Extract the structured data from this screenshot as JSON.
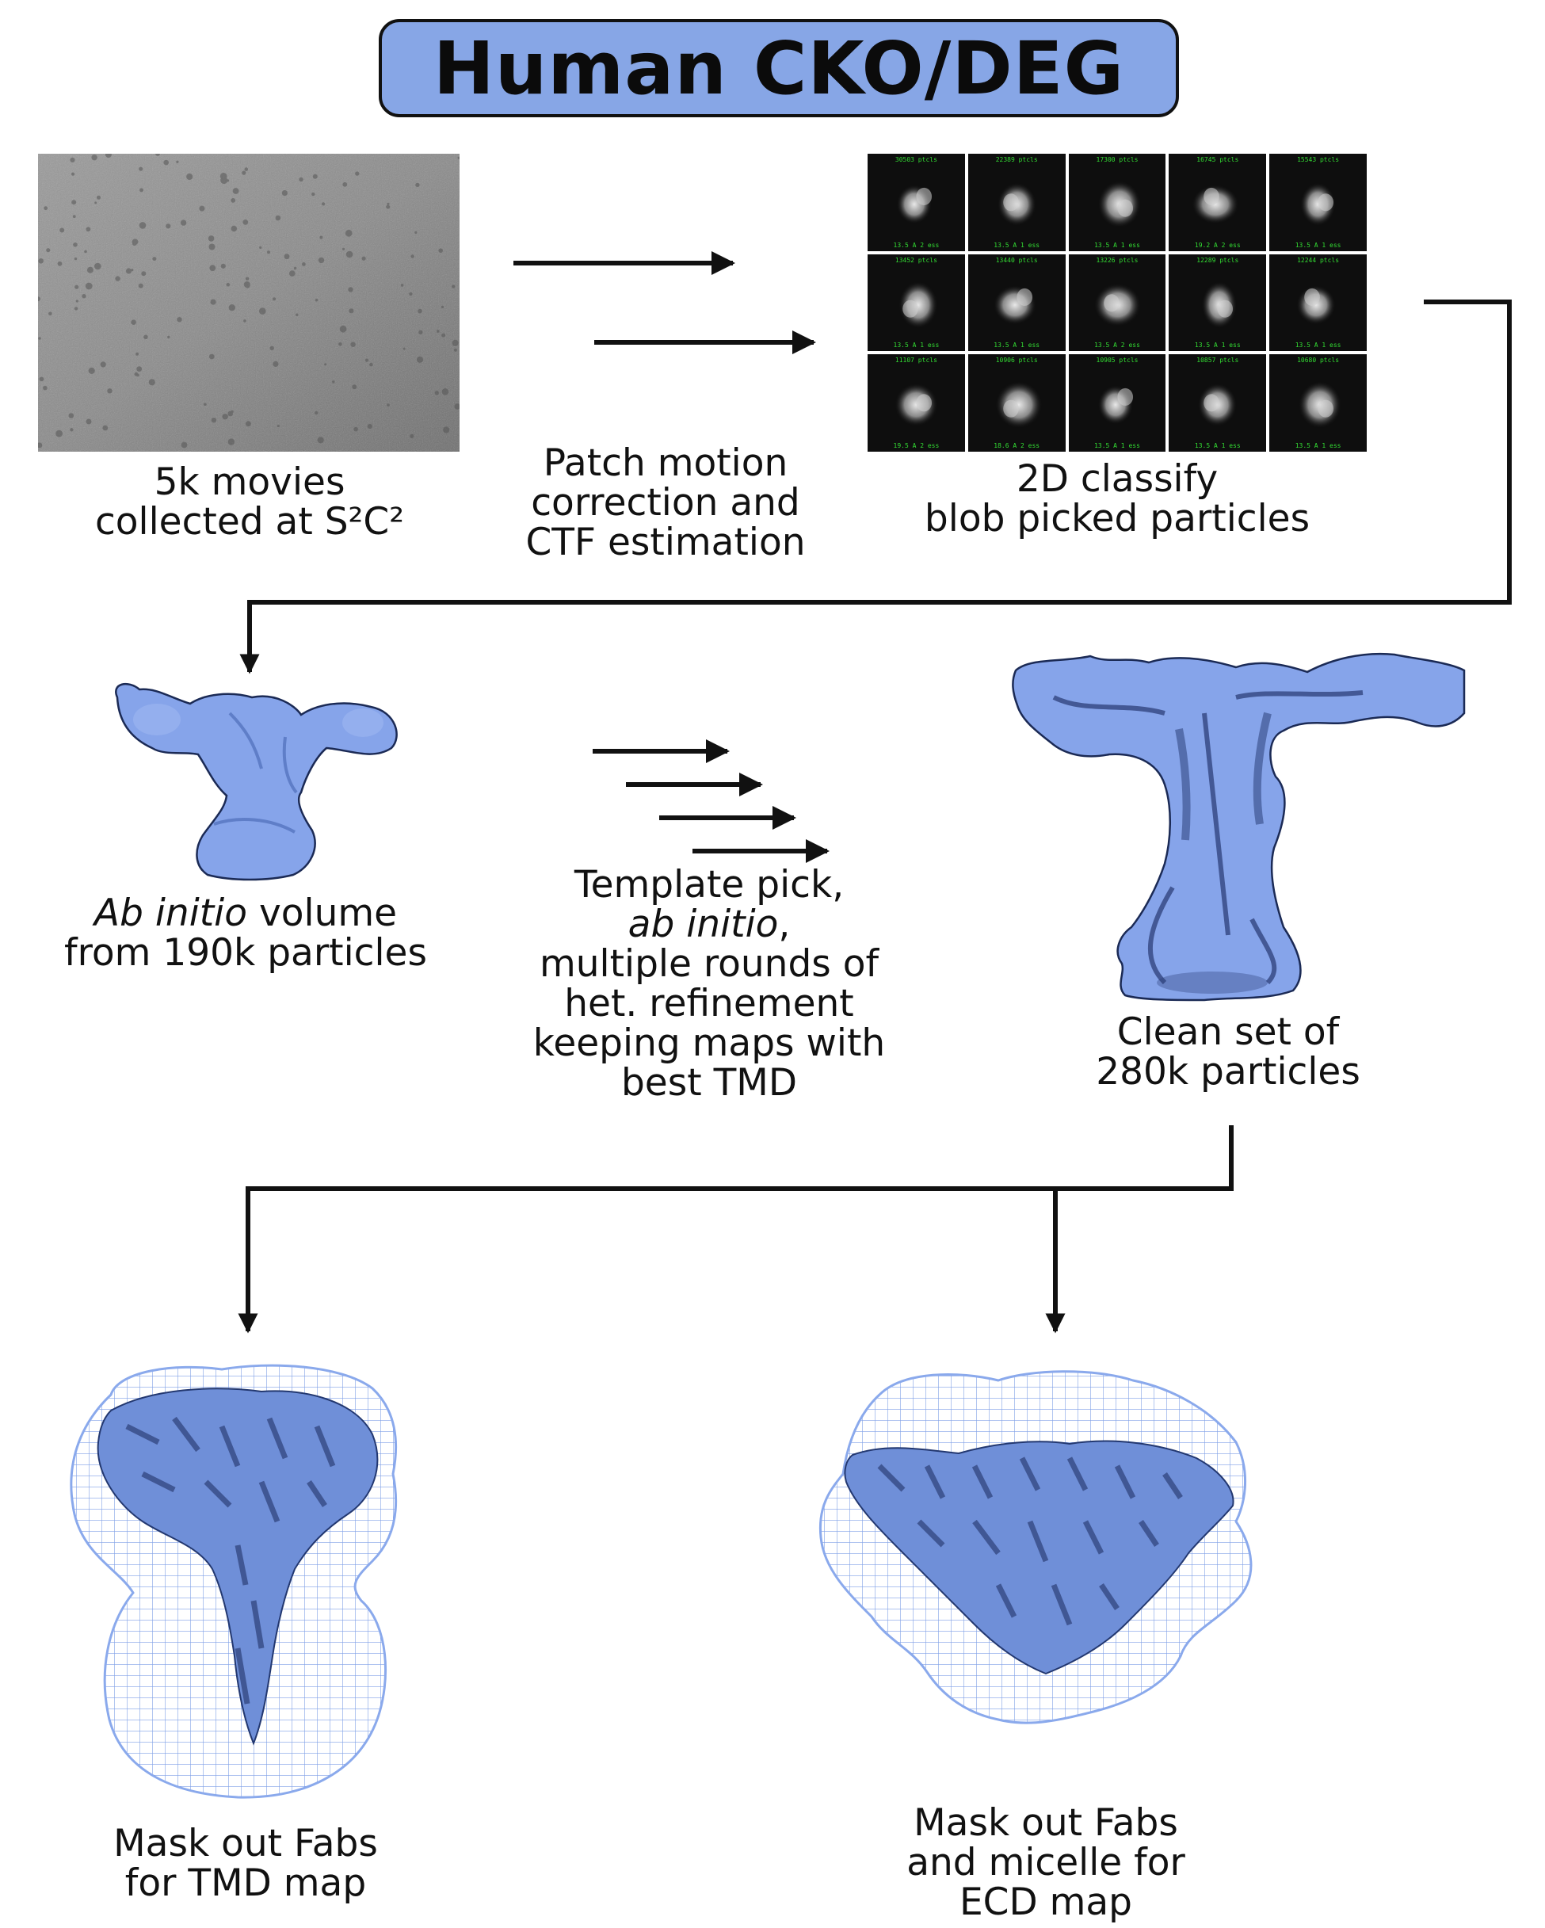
{
  "title": "Human CKO/DEG",
  "colors": {
    "accent": "#87a6e6",
    "map": "#7f9de0",
    "mesh": "#8aa9ec",
    "arrow": "#111111",
    "class_text": "#33dd33"
  },
  "steps": {
    "movies": {
      "line1": "5k movies",
      "line2": "collected at S²C²"
    },
    "motion": {
      "line1": "Patch motion",
      "line2": "correction and",
      "line3": "CTF estimation"
    },
    "classify": {
      "line1": "2D classify",
      "line2": "blob picked particles"
    },
    "abinitio": {
      "line1_italic": "Ab initio",
      "line1_rest": " volume",
      "line2": "from 190k particles"
    },
    "template": {
      "line1": "Template pick,",
      "line2_italic": "ab initio",
      "line2_rest": ",",
      "line3": "multiple rounds of",
      "line4": "het. refinement",
      "line5": "keeping maps with",
      "line6": "best TMD"
    },
    "clean": {
      "line1": "Clean set of",
      "line2": "280k particles"
    },
    "tmd": {
      "line1": "Mask out Fabs",
      "line2": "for TMD map"
    },
    "ecd": {
      "line1": "Mask out Fabs",
      "line2": "and micelle for",
      "line3": "ECD map"
    }
  },
  "classes_2d": [
    {
      "count": "30503 ptcls",
      "res": "13.5 A 2 ess"
    },
    {
      "count": "22389 ptcls",
      "res": "13.5 A 1 ess"
    },
    {
      "count": "17300 ptcls",
      "res": "13.5 A 1 ess"
    },
    {
      "count": "16745 ptcls",
      "res": "19.2 A 2 ess"
    },
    {
      "count": "15543 ptcls",
      "res": "13.5 A 1 ess"
    },
    {
      "count": "13452 ptcls",
      "res": "13.5 A 1 ess"
    },
    {
      "count": "13440 ptcls",
      "res": "13.5 A 1 ess"
    },
    {
      "count": "13226 ptcls",
      "res": "13.5 A 2 ess"
    },
    {
      "count": "12289 ptcls",
      "res": "13.5 A 1 ess"
    },
    {
      "count": "12244 ptcls",
      "res": "13.5 A 1 ess"
    },
    {
      "count": "11107 ptcls",
      "res": "19.5 A 2 ess"
    },
    {
      "count": "10906 ptcls",
      "res": "18.6 A 2 ess"
    },
    {
      "count": "10905 ptcls",
      "res": "13.5 A 1 ess"
    },
    {
      "count": "10857 ptcls",
      "res": "13.5 A 1 ess"
    },
    {
      "count": "10680 ptcls",
      "res": "13.5 A 1 ess"
    }
  ]
}
